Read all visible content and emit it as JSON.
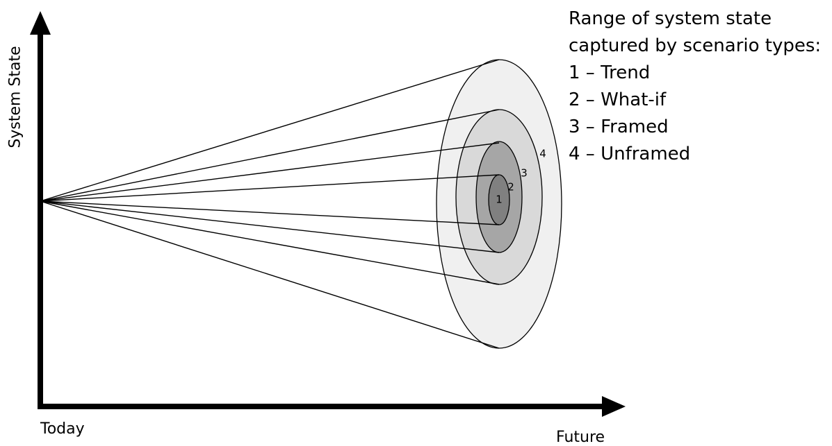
{
  "diagram": {
    "y_axis_label": "System State",
    "x_axis_start_label": "Today",
    "x_axis_end_label": "Future",
    "legend": {
      "title_line1": "Range of system state",
      "title_line2": "captured by scenario types:",
      "entries": [
        {
          "number": "1",
          "dash": "–",
          "name": "Trend",
          "text": "1 – Trend"
        },
        {
          "number": "2",
          "dash": "–",
          "name": "What-if",
          "text": "2 – What-if"
        },
        {
          "number": "3",
          "dash": "–",
          "name": "Framed",
          "text": "3 – Framed"
        },
        {
          "number": "4",
          "dash": "–",
          "name": "Unframed",
          "text": "4 – Unframed"
        }
      ]
    },
    "rings": [
      {
        "label": "4",
        "fill": "#f0f0f0"
      },
      {
        "label": "3",
        "fill": "#d9d9d9"
      },
      {
        "label": "2",
        "fill": "#a6a6a6"
      },
      {
        "label": "1",
        "fill": "#808080"
      }
    ],
    "colors": {
      "axis": "#000000",
      "lines": "#000000",
      "background": "#ffffff"
    }
  }
}
